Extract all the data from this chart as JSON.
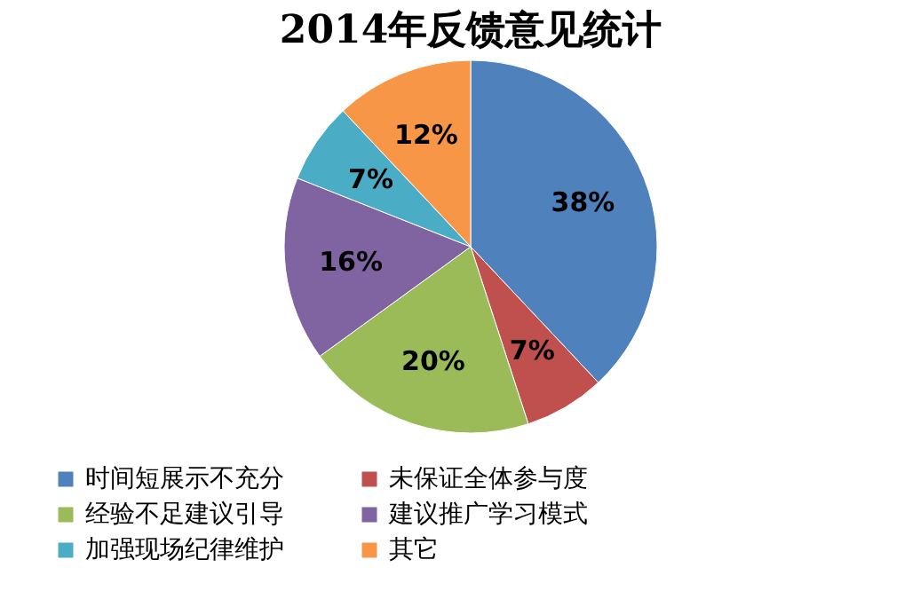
{
  "chart_data": {
    "type": "pie",
    "title": "2014年反馈意见统计",
    "categories": [
      "时间短展示不充分",
      "未保证全体参与度",
      "经验不足建议引导",
      "建议推广学习模式",
      "加强现场纪律维护",
      "其它"
    ],
    "values": [
      38,
      7,
      20,
      16,
      7,
      12
    ],
    "value_labels": [
      "38%",
      "7%",
      "20%",
      "16%",
      "7%",
      "12%"
    ],
    "colors": [
      "#4f81bd",
      "#c0504d",
      "#9bbb59",
      "#8064a2",
      "#4bacc6",
      "#f79646"
    ],
    "legend": "bottom"
  }
}
